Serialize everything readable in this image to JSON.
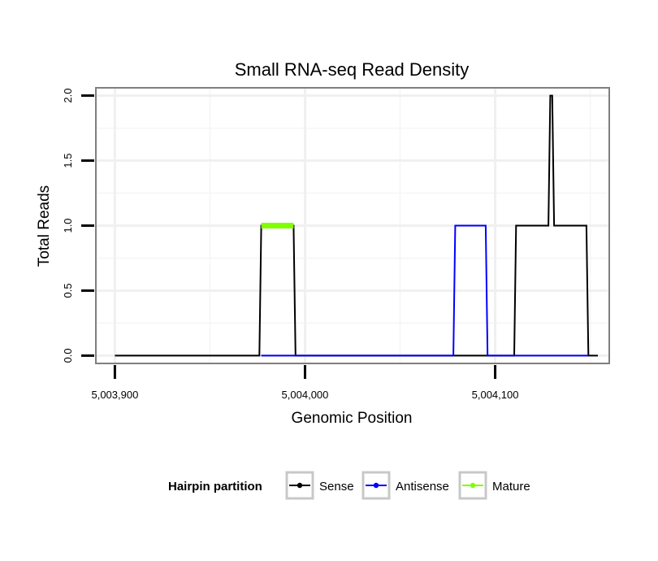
{
  "chart_data": {
    "type": "line",
    "title": "Small RNA-seq Read Density",
    "xlabel": "Genomic Position",
    "ylabel": "Total Reads",
    "xlim": [
      5003890,
      5004160
    ],
    "ylim": [
      -0.06,
      2.06
    ],
    "x_ticks": [
      5003900,
      5004000,
      5004100
    ],
    "x_tick_labels": [
      "5,003,900",
      "5,004,000",
      "5,004,100"
    ],
    "y_ticks": [
      0.0,
      0.5,
      1.0,
      1.5,
      2.0
    ],
    "y_tick_labels": [
      "0.0",
      "0.5",
      "1.0",
      "1.5",
      "2.0"
    ],
    "x_minor_gridlines": [
      5003950,
      5004050,
      5004150
    ],
    "y_minor_gridlines": [
      0.25,
      0.75,
      1.25,
      1.75
    ],
    "grid": true,
    "legend_position": "bottom",
    "legend_title": "Hairpin partition",
    "series": [
      {
        "name": "Sense",
        "color": "#000000",
        "width": 2,
        "points": [
          [
            5003900,
            0
          ],
          [
            5003976,
            0
          ],
          [
            5003977,
            1
          ],
          [
            5003994,
            1
          ],
          [
            5003995,
            0
          ],
          [
            5004110,
            0
          ],
          [
            5004111,
            1
          ],
          [
            5004128,
            1
          ],
          [
            5004129,
            2
          ],
          [
            5004130,
            2
          ],
          [
            5004131,
            1
          ],
          [
            5004148,
            1
          ],
          [
            5004149,
            0
          ],
          [
            5004154,
            0
          ]
        ]
      },
      {
        "name": "Antisense",
        "color": "#0000ff",
        "width": 2,
        "points": [
          [
            5003977,
            0
          ],
          [
            5003995,
            0
          ],
          [
            5004078,
            0
          ],
          [
            5004079,
            1
          ],
          [
            5004095,
            1
          ],
          [
            5004096,
            0
          ],
          [
            5004111,
            0
          ],
          [
            5004149,
            0
          ]
        ]
      },
      {
        "name": "Mature",
        "color": "#7fff00",
        "width": 7,
        "points": [
          [
            5003977,
            1
          ],
          [
            5003994,
            1
          ]
        ]
      }
    ]
  }
}
